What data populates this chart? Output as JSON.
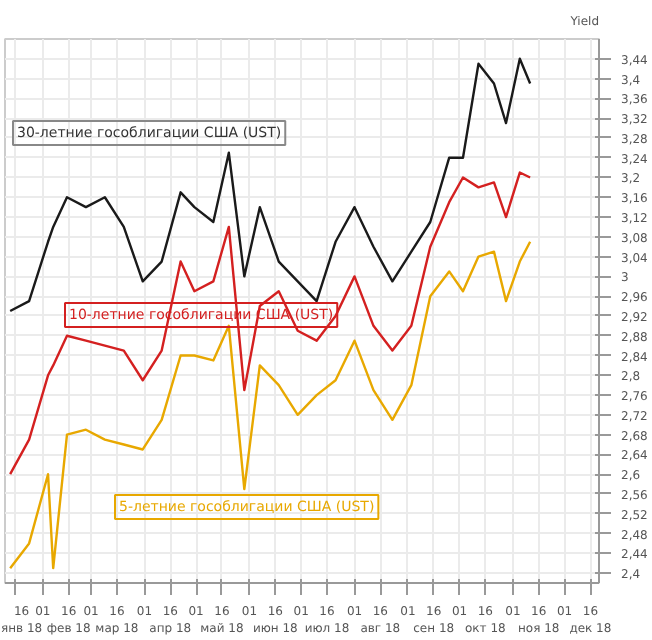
{
  "chart_data": {
    "type": "line",
    "ylabel": "Yield",
    "x": [
      "2018-01-13",
      "2018-01-24",
      "2018-02-04",
      "2018-02-07",
      "2018-02-15",
      "2018-02-26",
      "2018-03-09",
      "2018-03-20",
      "2018-03-31",
      "2018-04-11",
      "2018-04-22",
      "2018-04-30",
      "2018-05-11",
      "2018-05-20",
      "2018-05-29",
      "2018-06-07",
      "2018-06-18",
      "2018-06-29",
      "2018-07-10",
      "2018-07-21",
      "2018-08-01",
      "2018-08-12",
      "2018-08-23",
      "2018-09-03",
      "2018-09-14",
      "2018-09-25",
      "2018-10-03",
      "2018-10-12",
      "2018-10-21",
      "2018-10-28",
      "2018-11-05",
      "2018-11-11"
    ],
    "series": [
      {
        "name": "30-летние гособлигации США (UST)",
        "color": "#1a1a1a",
        "values": [
          2.93,
          2.95,
          3.07,
          3.1,
          3.16,
          3.14,
          3.16,
          3.1,
          2.99,
          3.03,
          3.17,
          3.14,
          3.11,
          3.25,
          3.0,
          3.14,
          3.03,
          2.99,
          2.95,
          3.07,
          3.14,
          3.06,
          2.99,
          3.05,
          3.11,
          3.24,
          3.24,
          3.43,
          3.39,
          3.31,
          3.44,
          3.39
        ]
      },
      {
        "name": "10-летние гособлигации США (UST)",
        "color": "#d42020",
        "values": [
          2.6,
          2.67,
          2.8,
          2.82,
          2.88,
          2.87,
          2.86,
          2.85,
          2.79,
          2.85,
          3.03,
          2.97,
          2.99,
          3.1,
          2.77,
          2.94,
          2.97,
          2.89,
          2.87,
          2.92,
          3.0,
          2.9,
          2.85,
          2.9,
          3.06,
          3.15,
          3.2,
          3.18,
          3.19,
          3.12,
          3.21,
          3.2
        ]
      },
      {
        "name": "5-летние гособлигации США (UST)",
        "color": "#e8a800",
        "values": [
          2.41,
          2.46,
          2.6,
          2.41,
          2.68,
          2.69,
          2.67,
          2.66,
          2.65,
          2.71,
          2.84,
          2.84,
          2.83,
          2.9,
          2.57,
          2.82,
          2.78,
          2.72,
          2.76,
          2.79,
          2.87,
          2.77,
          2.71,
          2.78,
          2.96,
          3.01,
          2.97,
          3.04,
          3.05,
          2.95,
          3.03,
          3.07
        ]
      }
    ],
    "xlim": [
      "2018-01-10",
      "2018-12-21"
    ],
    "xticks": [
      {
        "value": "2018-01-16",
        "label": "16\nянв 18"
      },
      {
        "value": "2018-02-01",
        "label": "01"
      },
      {
        "value": "2018-02-16",
        "label": "16\nфев 18"
      },
      {
        "value": "2018-03-01",
        "label": "01"
      },
      {
        "value": "2018-03-16",
        "label": "16\nмар 18"
      },
      {
        "value": "2018-04-01",
        "label": "01"
      },
      {
        "value": "2018-04-16",
        "label": "16\nапр 18"
      },
      {
        "value": "2018-05-01",
        "label": "01"
      },
      {
        "value": "2018-05-16",
        "label": "16\nмай 18"
      },
      {
        "value": "2018-06-01",
        "label": "01"
      },
      {
        "value": "2018-06-16",
        "label": "16\nиюн 18"
      },
      {
        "value": "2018-07-01",
        "label": "01"
      },
      {
        "value": "2018-07-16",
        "label": "16\nиюл 18"
      },
      {
        "value": "2018-08-01",
        "label": "01"
      },
      {
        "value": "2018-08-16",
        "label": "16\nавг 18"
      },
      {
        "value": "2018-09-01",
        "label": "01"
      },
      {
        "value": "2018-09-16",
        "label": "16\nсен 18"
      },
      {
        "value": "2018-10-01",
        "label": "01"
      },
      {
        "value": "2018-10-16",
        "label": "16\nокт 18"
      },
      {
        "value": "2018-11-01",
        "label": "01"
      },
      {
        "value": "2018-11-16",
        "label": "16\nноя 18"
      },
      {
        "value": "2018-12-01",
        "label": "01"
      },
      {
        "value": "2018-12-16",
        "label": "16\nдек 18"
      }
    ],
    "ylim": [
      2.38,
      3.48
    ],
    "yticks": [
      {
        "value": 2.4,
        "label": "2,4"
      },
      {
        "value": 2.44,
        "label": "2,44"
      },
      {
        "value": 2.48,
        "label": "2,48"
      },
      {
        "value": 2.52,
        "label": "2,52"
      },
      {
        "value": 2.56,
        "label": "2,56"
      },
      {
        "value": 2.6,
        "label": "2,6"
      },
      {
        "value": 2.64,
        "label": "2,64"
      },
      {
        "value": 2.68,
        "label": "2,68"
      },
      {
        "value": 2.72,
        "label": "2,72"
      },
      {
        "value": 2.76,
        "label": "2,76"
      },
      {
        "value": 2.8,
        "label": "2,8"
      },
      {
        "value": 2.84,
        "label": "2,84"
      },
      {
        "value": 2.88,
        "label": "2,88"
      },
      {
        "value": 2.92,
        "label": "2,92"
      },
      {
        "value": 2.96,
        "label": "2,96"
      },
      {
        "value": 3.0,
        "label": "3"
      },
      {
        "value": 3.04,
        "label": "3,04"
      },
      {
        "value": 3.08,
        "label": "3,08"
      },
      {
        "value": 3.12,
        "label": "3,12"
      },
      {
        "value": 3.16,
        "label": "3,16"
      },
      {
        "value": 3.2,
        "label": "3,2"
      },
      {
        "value": 3.24,
        "label": "3,24"
      },
      {
        "value": 3.28,
        "label": "3,28"
      },
      {
        "value": 3.32,
        "label": "3,32"
      },
      {
        "value": 3.36,
        "label": "3,36"
      },
      {
        "value": 3.4,
        "label": "3,4"
      },
      {
        "value": 3.44,
        "label": "3,44"
      }
    ],
    "grid": true,
    "line_style": "solid",
    "marker": "none"
  }
}
